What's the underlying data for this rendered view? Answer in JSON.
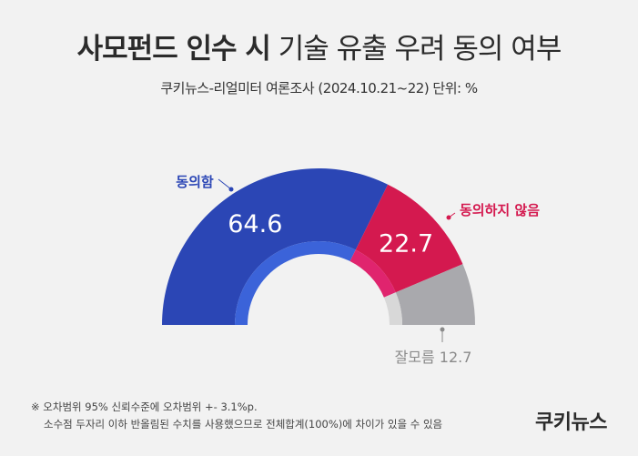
{
  "header": {
    "title_bold": "사모펀드 인수 시",
    "title_light": "기술 유출 우려 동의 여부",
    "subtitle": "쿠키뉴스-리얼미터 여론조사 (2024.10.21~22) 단위: %"
  },
  "chart_data": {
    "type": "pie",
    "variant": "half-donut",
    "categories": [
      "동의함",
      "동의하지 않음",
      "잘모름"
    ],
    "values": [
      64.6,
      22.7,
      12.7
    ],
    "value_labels": [
      "64.6",
      "22.7",
      "12.7"
    ],
    "category_labels": [
      "동의함",
      "동의하지 않음",
      "잘모름 12.7"
    ],
    "colors": [
      "#2b46b5",
      "#d4194f",
      "#a9a9ad"
    ],
    "inner_colors": [
      "#3b63d9",
      "#e0246e",
      "#d8d8d8"
    ],
    "label_colors": [
      "#2b46b5",
      "#d4194f",
      "#8a8a8a"
    ]
  },
  "footnote": {
    "line1": "※ 오차범위 95% 신뢰수준에 오차범위 +- 3.1%p.",
    "line2": "소수점 두자리 이하 반올림된 수치를 사용했으므로 전체합계(100%)에 차이가 있을 수 있음"
  },
  "brand": {
    "name": "쿠키뉴스"
  }
}
